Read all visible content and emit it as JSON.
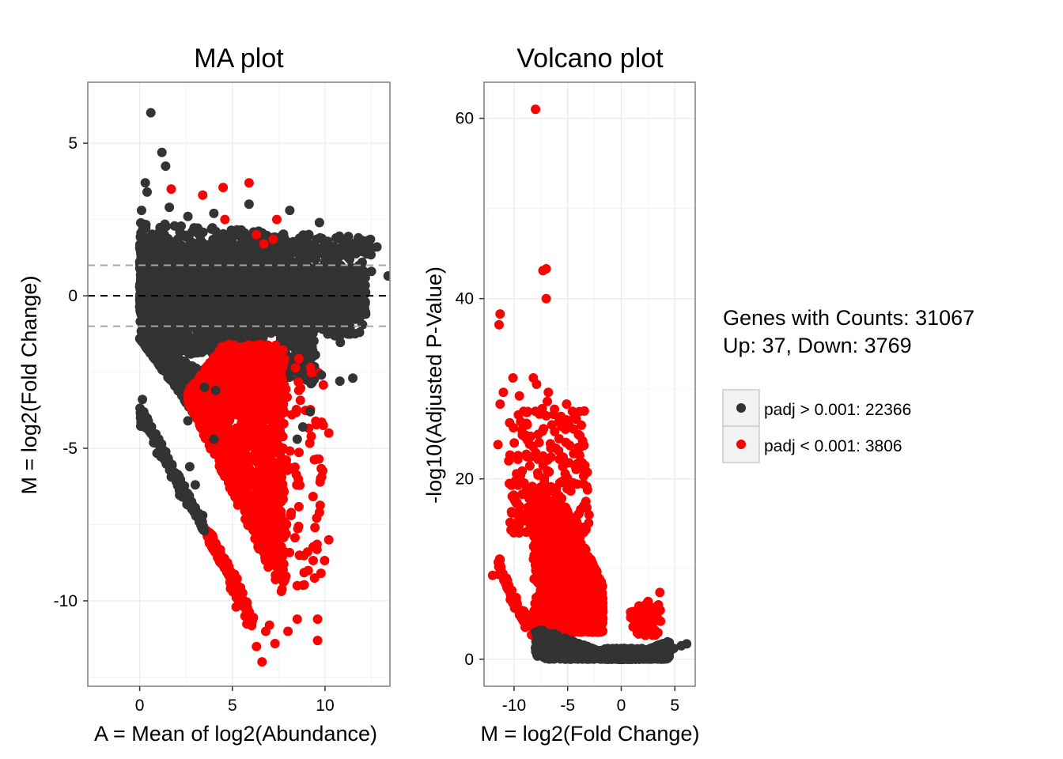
{
  "chart_data": [
    {
      "type": "scatter",
      "title": "MA plot",
      "xlabel": "A = Mean of log2(Abundance)",
      "ylabel": "M = log2(Fold Change)",
      "xlim": [
        -2.8,
        13.5
      ],
      "ylim": [
        -12.8,
        7.0
      ],
      "xticks": [
        0,
        5,
        10
      ],
      "xtick_labels": [
        "0",
        "5",
        "10"
      ],
      "yticks": [
        5,
        0,
        -5,
        -10
      ],
      "ytick_labels": [
        "5",
        "0",
        "-5",
        "-10"
      ],
      "grid": true,
      "reference_lines": [
        {
          "y": 1,
          "style": "dashed",
          "color": "#a6a6a6"
        },
        {
          "y": 0,
          "style": "dashed",
          "color": "#000000"
        },
        {
          "y": -1,
          "style": "dashed",
          "color": "#a6a6a6"
        }
      ],
      "series": [
        {
          "name": "padj > 0.001: 22366",
          "color": "#333333",
          "bands": [
            {
              "x": [
                0,
                13.5
              ],
              "y_center": 0.15,
              "spread": 1.8,
              "count": 2400
            },
            {
              "x": [
                0,
                4.5
              ],
              "y_from": [
                -1.4,
                -4.2
              ],
              "y_to": [
                -1.4,
                -4.2
              ],
              "count": 500
            }
          ],
          "points": [
            {
              "x": 0.6,
              "y": 6.0
            },
            {
              "x": 1.2,
              "y": 4.7
            },
            {
              "x": 1.4,
              "y": 4.25
            },
            {
              "x": 0.3,
              "y": 3.7
            },
            {
              "x": 0.4,
              "y": 3.4
            },
            {
              "x": 0.1,
              "y": 2.8
            },
            {
              "x": 1.6,
              "y": 2.9
            },
            {
              "x": 2.6,
              "y": 2.6
            },
            {
              "x": 4.0,
              "y": 2.7
            },
            {
              "x": 5.9,
              "y": 3.0
            },
            {
              "x": 8.1,
              "y": 2.8
            },
            {
              "x": 9.7,
              "y": 2.4
            },
            {
              "x": 11.8,
              "y": 1.9
            },
            {
              "x": 12.8,
              "y": 1.6
            },
            {
              "x": 13.4,
              "y": 0.65
            },
            {
              "x": 11.5,
              "y": -2.7
            },
            {
              "x": 10.8,
              "y": -2.8
            },
            {
              "x": 9.2,
              "y": -3.8
            },
            {
              "x": 8.8,
              "y": -4.3
            },
            {
              "x": 8.5,
              "y": -4.7
            },
            {
              "x": 4.0,
              "y": -4.7
            },
            {
              "x": 4.1,
              "y": -3.1
            },
            {
              "x": 3.5,
              "y": -3.0
            },
            {
              "x": 0.15,
              "y": -3.4
            },
            {
              "x": 2.6,
              "y": -4.1
            },
            {
              "x": 9.8,
              "y": -2.6
            },
            {
              "x": 10.5,
              "y": -1.3
            },
            {
              "x": 12.5,
              "y": 0.8
            },
            {
              "x": 3.0,
              "y": -6.2
            },
            {
              "x": 2.7,
              "y": -5.6
            },
            {
              "x": 3.4,
              "y": -7.2
            },
            {
              "x": 3.5,
              "y": -7.7
            }
          ]
        },
        {
          "name": "padj < 0.001: 3806",
          "color": "#ff0000",
          "bands": [
            {
              "x": [
                2.2,
                9.0
              ],
              "y_center": -5.8,
              "spread": 5.0,
              "count": 1400
            }
          ],
          "points": [
            {
              "x": 1.7,
              "y": 3.5
            },
            {
              "x": 3.4,
              "y": 3.3
            },
            {
              "x": 4.5,
              "y": 3.55
            },
            {
              "x": 5.9,
              "y": 3.7
            },
            {
              "x": 4.6,
              "y": 2.5
            },
            {
              "x": 7.4,
              "y": 2.5
            },
            {
              "x": 6.3,
              "y": 2.0
            },
            {
              "x": 7.2,
              "y": 1.85
            },
            {
              "x": 6.7,
              "y": 1.7
            },
            {
              "x": 10.2,
              "y": -4.5
            },
            {
              "x": 10.2,
              "y": -8.0
            },
            {
              "x": 9.7,
              "y": -7.1
            },
            {
              "x": 9.6,
              "y": -10.6
            },
            {
              "x": 9.6,
              "y": -11.3
            },
            {
              "x": 6.6,
              "y": -12.0
            },
            {
              "x": 7.3,
              "y": -11.4
            },
            {
              "x": 8.0,
              "y": -11.0
            },
            {
              "x": 8.5,
              "y": -10.6
            },
            {
              "x": 8.5,
              "y": -9.5
            },
            {
              "x": 5.2,
              "y": -10.2
            },
            {
              "x": 6.8,
              "y": -11.0
            },
            {
              "x": 6.3,
              "y": -11.5
            },
            {
              "x": 7.0,
              "y": -10.8
            },
            {
              "x": 4.9,
              "y": -9.6
            }
          ]
        }
      ]
    },
    {
      "type": "scatter",
      "title": "Volcano plot",
      "xlabel": "M = log2(Fold Change)",
      "ylabel": "-log10(Adjusted P-Value)",
      "xlim": [
        -12.8,
        6.9
      ],
      "ylim": [
        -3.0,
        64.0
      ],
      "xticks": [
        -10,
        -5,
        0,
        5
      ],
      "xtick_labels": [
        "-10",
        "-5",
        "0",
        "5"
      ],
      "yticks": [
        0,
        20,
        40,
        60
      ],
      "ytick_labels": [
        "0",
        "20",
        "40",
        "60"
      ],
      "grid": true,
      "series": [
        {
          "name": "padj > 0.001: 22366",
          "color": "#333333",
          "bands": [
            {
              "x": [
                -8.5,
                6.2
              ],
              "y_max_at_edges": 3.0,
              "y_min": 0,
              "count": 1500
            }
          ],
          "points": [
            {
              "x": 6.1,
              "y": 1.7
            },
            {
              "x": 5.6,
              "y": 1.5
            },
            {
              "x": 4.9,
              "y": 1.2
            },
            {
              "x": 4.4,
              "y": 1.0
            },
            {
              "x": -8.0,
              "y": 3.0
            },
            {
              "x": -7.5,
              "y": 2.7
            }
          ]
        },
        {
          "name": "padj < 0.001: 3806",
          "color": "#ff0000",
          "bands": [
            {
              "x": [
                -8.5,
                -1.8
              ],
              "y_center": 8,
              "spread": 14,
              "count": 1300
            },
            {
              "x": [
                -12.0,
                -8.0
              ],
              "edge_curve": true,
              "count": 140
            }
          ],
          "points": [
            {
              "x": -8.0,
              "y": 61.0
            },
            {
              "x": -7.0,
              "y": 43.3
            },
            {
              "x": -7.3,
              "y": 43.1
            },
            {
              "x": -7.0,
              "y": 40.0
            },
            {
              "x": -11.3,
              "y": 38.3
            },
            {
              "x": -11.4,
              "y": 37.1
            },
            {
              "x": -10.1,
              "y": 31.2
            },
            {
              "x": -8.2,
              "y": 31.2
            },
            {
              "x": -7.9,
              "y": 30.5
            },
            {
              "x": -11.0,
              "y": 29.6
            },
            {
              "x": -6.8,
              "y": 29.6
            },
            {
              "x": -9.5,
              "y": 29.2
            },
            {
              "x": -6.9,
              "y": 28.6
            },
            {
              "x": -11.3,
              "y": 28.3
            },
            {
              "x": -5.1,
              "y": 28.3
            },
            {
              "x": -9.1,
              "y": 27.5
            },
            {
              "x": -8.0,
              "y": 27.5
            },
            {
              "x": -9.6,
              "y": 27.1
            },
            {
              "x": -7.0,
              "y": 27.0
            },
            {
              "x": -11.5,
              "y": 23.8
            },
            {
              "x": -3.6,
              "y": 24.2
            },
            {
              "x": -5.2,
              "y": 25.5
            },
            {
              "x": -12.0,
              "y": 9.3
            },
            {
              "x": 3.6,
              "y": 7.4
            },
            {
              "x": 2.5,
              "y": 6.4
            },
            {
              "x": 2.8,
              "y": 4.8
            },
            {
              "x": 3.2,
              "y": 4.3
            },
            {
              "x": -3.3,
              "y": 17.5
            },
            {
              "x": -3.0,
              "y": 16.0
            },
            {
              "x": -3.4,
              "y": 21.5
            },
            {
              "x": -3.5,
              "y": 20.3
            },
            {
              "x": -10.5,
              "y": 22.0
            }
          ]
        }
      ]
    }
  ],
  "annotation": {
    "line1": "Genes with Counts: 31067",
    "line2": "Up: 37, Down: 3769"
  },
  "legend": {
    "placement": "right",
    "items": [
      {
        "label": "padj > 0.001: 22366",
        "color": "#333333"
      },
      {
        "label": "padj < 0.001: 3806",
        "color": "#ff0000"
      }
    ]
  },
  "colors": {
    "panel_background": "#ffffff",
    "grid_major": "#ebebeb",
    "grid_minor": "#f5f5f5",
    "border": "#7f7f7f",
    "not_significant": "#333333",
    "significant": "#ff0000"
  }
}
